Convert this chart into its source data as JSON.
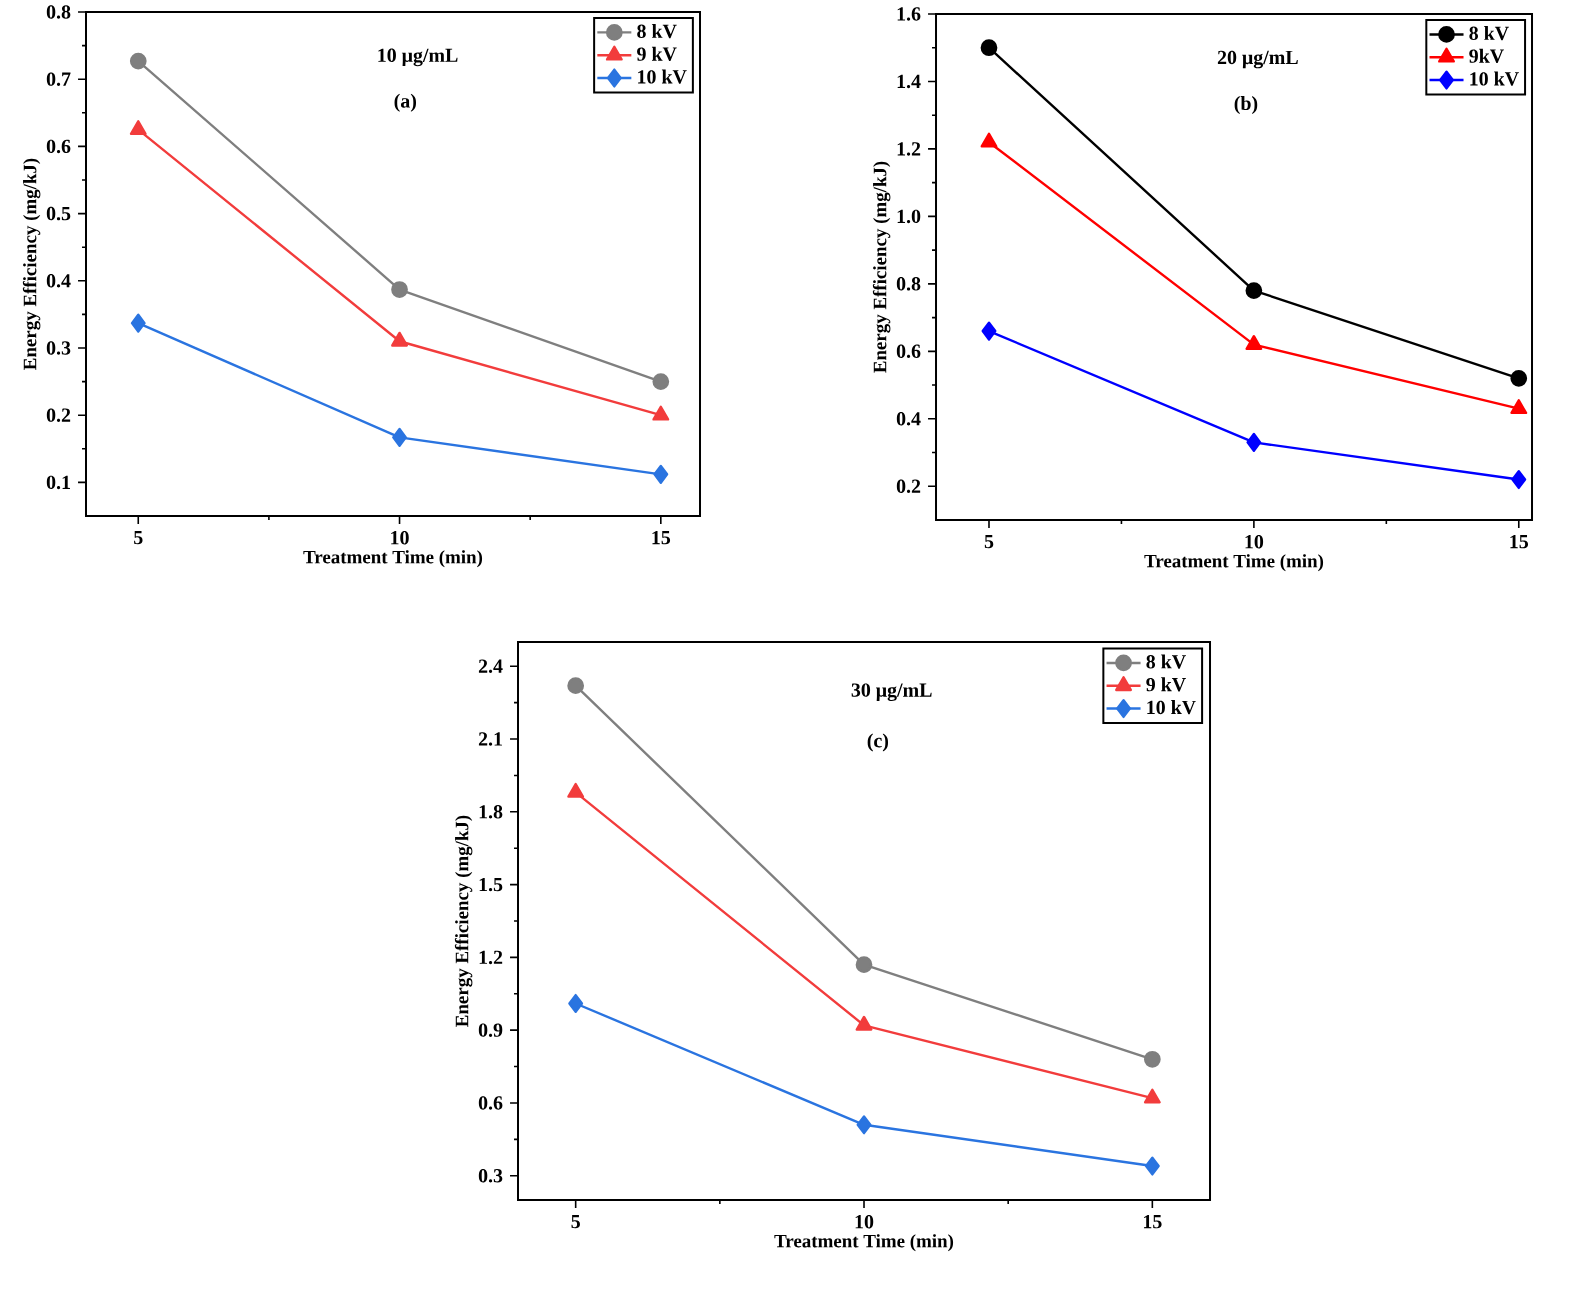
{
  "chart_data": [
    {
      "type": "line",
      "xlabel": "Treatment Time (min)",
      "ylabel": "Energy Efficiency (mg/kJ)",
      "annotations": [
        "10 μg/mL",
        "(a)"
      ],
      "x": [
        5,
        10,
        15
      ],
      "xlim": [
        4,
        15.75
      ],
      "xticks": [
        5,
        10,
        15
      ],
      "ylim": [
        0.05,
        0.8
      ],
      "yticks": [
        0.1,
        0.2,
        0.3,
        0.4,
        0.5,
        0.6,
        0.7,
        0.8
      ],
      "legend": "top right",
      "series": [
        {
          "name": "8 kV",
          "color": "#7f7f7f",
          "marker": "circle",
          "values": [
            0.727,
            0.387,
            0.25
          ]
        },
        {
          "name": "9 kV",
          "color": "#f23c3c",
          "marker": "triangle",
          "values": [
            0.625,
            0.31,
            0.2
          ]
        },
        {
          "name": "10 kV",
          "color": "#2a74e0",
          "marker": "diamond",
          "values": [
            0.337,
            0.167,
            0.112
          ]
        }
      ]
    },
    {
      "type": "line",
      "xlabel": "Treatment Time (min)",
      "ylabel": "Energy Efficiency (mg/kJ)",
      "annotations": [
        "20 μg/mL",
        "(b)"
      ],
      "x": [
        5,
        10,
        15
      ],
      "xlim": [
        4,
        15.25
      ],
      "xticks": [
        5,
        10,
        15
      ],
      "ylim": [
        0.1,
        1.6
      ],
      "yticks": [
        0.2,
        0.4,
        0.6,
        0.8,
        {
          "value": 1.0,
          "label": "1.0"
        },
        1.2,
        1.4,
        1.6
      ],
      "legend": "top right",
      "series": [
        {
          "name": "8 kV",
          "color": "#000000",
          "marker": "circle",
          "values": [
            1.5,
            0.78,
            0.52
          ]
        },
        {
          "name": "9kV",
          "color": "#ff0000",
          "marker": "triangle",
          "values": [
            1.22,
            0.62,
            0.43
          ]
        },
        {
          "name": "10 kV",
          "color": "#0000ff",
          "marker": "diamond",
          "values": [
            0.66,
            0.33,
            0.22
          ]
        }
      ]
    },
    {
      "type": "line",
      "xlabel": "Treatment Time (min)",
      "ylabel": "Energy Efficiency (mg/kJ)",
      "annotations": [
        "30 μg/mL",
        "(c)"
      ],
      "x": [
        5,
        10,
        15
      ],
      "xlim": [
        4,
        16
      ],
      "xticks": [
        5,
        10,
        15
      ],
      "ylim": [
        0.2,
        2.5
      ],
      "yticks": [
        0.3,
        0.6,
        0.9,
        1.2,
        1.5,
        1.8,
        2.1,
        2.4
      ],
      "legend": "top right",
      "series": [
        {
          "name": "8 kV",
          "color": "#7f7f7f",
          "marker": "circle",
          "values": [
            2.32,
            1.17,
            0.78
          ]
        },
        {
          "name": "9 kV",
          "color": "#f23c3c",
          "marker": "triangle",
          "values": [
            1.88,
            0.92,
            0.62
          ]
        },
        {
          "name": "10 kV",
          "color": "#2a74e0",
          "marker": "diamond",
          "values": [
            1.01,
            0.51,
            0.34
          ]
        }
      ]
    }
  ]
}
